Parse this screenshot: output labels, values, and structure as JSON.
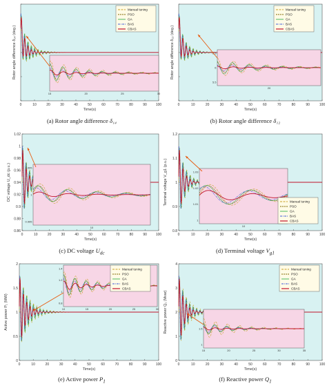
{
  "colors": {
    "manual": "#c9a227",
    "pso": "#7f6a00",
    "ga": "#37b24d",
    "bas": "#3b5bdb",
    "cbas": "#c0122a",
    "plot_bg": "#d8f2f2",
    "inset_bg": "#f7d6e6",
    "arrow": "#e8590c"
  },
  "legend": [
    "Manual tuning",
    "PSO",
    "GA",
    "BAS",
    "CBAS"
  ],
  "chart_data": [
    {
      "id": "a",
      "type": "line",
      "scenario": "under-damped rotor angle oscillation",
      "caption": "(a) Rotor angle difference ",
      "caption_symbol": "δ₁₄",
      "ylabel": "Rotor angle difference δ₁₄ (deg.)",
      "xlabel": "Time(s)",
      "xlim": [
        0,
        100
      ],
      "x_ticks": [
        "0",
        "10",
        "20",
        "30",
        "40",
        "50",
        "60",
        "70",
        "80",
        "90",
        "100"
      ],
      "y_ticks": [
        "",
        "",
        "",
        "",
        ""
      ],
      "steady": 0.55,
      "initial": 0.85,
      "amplitude": 0.3,
      "period": 2.4,
      "decay": {
        "manual": 7,
        "pso": 5.5,
        "ga": 6,
        "bas": 4.5,
        "cbas": 3.5
      },
      "legend_position": "top-right",
      "inset": {
        "x_range": [
          10,
          30
        ],
        "x_ticks": [
          "15",
          "20",
          "25",
          "30"
        ],
        "y_ticks": [
          "",
          "",
          ""
        ]
      }
    },
    {
      "id": "b",
      "type": "line",
      "scenario": "under-damped rotor angle oscillation",
      "caption": "(b) Rotor angle difference ",
      "caption_symbol": "δ₁₂",
      "ylabel": "Rotor angle difference δ₁₂ (deg.)",
      "xlabel": "Time(s)",
      "xlim": [
        0,
        100
      ],
      "x_ticks": [
        "0",
        "10",
        "20",
        "30",
        "40",
        "50",
        "60",
        "70",
        "80",
        "90",
        "100"
      ],
      "y_ticks": [
        "",
        "",
        "",
        "",
        ""
      ],
      "steady": 0.68,
      "initial": 0.95,
      "amplitude": 0.28,
      "period": 2.4,
      "decay": {
        "manual": 6,
        "pso": 5,
        "ga": 5.5,
        "bas": 4.5,
        "cbas": 3.5
      },
      "legend_position": "top-right",
      "inset": {
        "x_range": [
          15,
          30
        ],
        "x_ticks": [
          "20"
        ],
        "y_ticks": [
          "6.5",
          "6",
          "5.5"
        ]
      }
    },
    {
      "id": "c",
      "type": "line",
      "scenario": "DC voltage response",
      "caption": "(c) DC voltage ",
      "caption_symbol": "U",
      "caption_sub": "dc",
      "ylabel": "DC voltage U_dc (p.u.)",
      "xlabel": "Time(s)",
      "xlim": [
        0,
        100
      ],
      "x_ticks": [
        "0",
        "10",
        "20",
        "30",
        "40",
        "50",
        "60",
        "70",
        "80",
        "90",
        "100"
      ],
      "ylim": [
        0.85,
        1.02
      ],
      "y_ticks": [
        "1.02",
        "1",
        "0.98",
        "0.96",
        "0.94",
        "0.92",
        "0.9",
        "0.88",
        "0.86"
      ],
      "steady": 1.0,
      "initial": 1.0,
      "amplitude": 0.012,
      "period": 2.5,
      "decay": {
        "manual": 5,
        "pso": 4.5,
        "ga": 4.5,
        "bas": 4,
        "cbas": 3
      },
      "inset": {
        "x_range": [
          10,
          20
        ],
        "x_ticks": [
          "10"
        ],
        "y_ticks": [
          "1.005",
          "1",
          "0.995"
        ]
      }
    },
    {
      "id": "d",
      "type": "line",
      "scenario": "terminal voltage response",
      "caption": "(d) Terminal voltage ",
      "caption_symbol": "V",
      "caption_sub": "g1",
      "ylabel": "Terminal voltage V_g1 (p.u.)",
      "xlabel": "Time(s)",
      "xlim": [
        0,
        100
      ],
      "x_ticks": [
        "0",
        "10",
        "20",
        "30",
        "40",
        "50",
        "60",
        "70",
        "80",
        "90",
        "100"
      ],
      "ylim": [
        0.8,
        1.2
      ],
      "y_ticks": [
        "1.2",
        "1.1",
        "1",
        "0.9",
        "0.8"
      ],
      "steady": 1.03,
      "initial": 1.03,
      "amplitude": 0.05,
      "period": 2.5,
      "decay": {
        "manual": 5,
        "pso": 4.5,
        "ga": 4.5,
        "bas": 4,
        "cbas": 3
      },
      "legend_position": "bottom-right",
      "inset": {
        "x_range": [
          5,
          10
        ],
        "x_ticks": [
          "10"
        ],
        "y_ticks": [
          "1.03",
          "1.02",
          "1.01",
          "1"
        ]
      }
    },
    {
      "id": "e",
      "type": "line",
      "scenario": "active power response",
      "caption": "(e) Active power ",
      "caption_symbol": "P",
      "caption_sub": "1",
      "ylabel": "Active power P₁ (MW)",
      "xlabel": "Time(s)",
      "xlim": [
        0,
        100
      ],
      "x_ticks": [
        "0",
        "10",
        "20",
        "30",
        "40",
        "50",
        "60",
        "70",
        "80",
        "90",
        "100"
      ],
      "ylim": [
        0,
        2
      ],
      "y_ticks": [
        "2",
        "1.5",
        "1",
        "0.5",
        "0"
      ],
      "steady": 1.0,
      "initial": 1.0,
      "amplitude": 0.6,
      "period": 2.4,
      "decay": {
        "manual": 7,
        "pso": 6,
        "ga": 6,
        "bas": 5,
        "cbas": 4
      },
      "legend_position": "top-right",
      "inset": {
        "x_range": [
          10,
          30
        ],
        "x_ticks": [
          "10",
          "15",
          "20",
          "25",
          "30"
        ],
        "y_ticks": [
          "1.4",
          "1.2",
          "1",
          "0.8"
        ]
      }
    },
    {
      "id": "f",
      "type": "line",
      "scenario": "reactive power response",
      "caption": "(f) Reactive power ",
      "caption_symbol": "Q",
      "caption_sub": "1",
      "ylabel": "Reactive power Q₁ (Mvar)",
      "xlabel": "Time(s)",
      "xlim": [
        0,
        100
      ],
      "x_ticks": [
        "0",
        "10",
        "20",
        "30",
        "40",
        "50",
        "60",
        "70",
        "80",
        "90",
        "100"
      ],
      "ylim": [
        0,
        4
      ],
      "y_ticks": [
        "4",
        "3",
        "2",
        "1",
        "0"
      ],
      "steady": 2.0,
      "initial": 2.0,
      "amplitude": 1.4,
      "period": 2.4,
      "decay": {
        "manual": 6,
        "pso": 5,
        "ga": 5,
        "bas": 4.5,
        "cbas": 3.5
      },
      "legend_position": "top-right",
      "inset": {
        "x_range": [
          15,
          35
        ],
        "x_ticks": [
          "15",
          "20",
          "25",
          "30",
          "35"
        ],
        "y_ticks": [
          "2",
          "1.5",
          "1"
        ]
      }
    }
  ]
}
